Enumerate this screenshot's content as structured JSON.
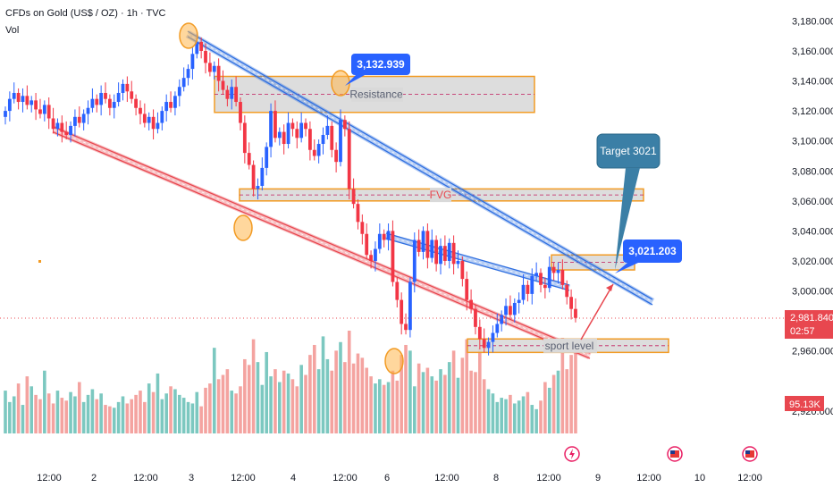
{
  "header": {
    "symbol_line": "CFDs on Gold (US$ / OZ) · 1h · TVC",
    "volume_label": "Vol"
  },
  "chart_data": {
    "type": "candlestick",
    "ylim": [
      2905,
      3185
    ],
    "y_ticks": [
      2920,
      2960,
      3000,
      3020,
      3040,
      3060,
      3080,
      3100,
      3120,
      3140,
      3160,
      3180
    ],
    "y_tick_labels": [
      "2,920.000",
      "2,960.000",
      "3,000.000",
      "3,020.000",
      "3,040.000",
      "3,060.000",
      "3,080.000",
      "3,100.000",
      "3,120.000",
      "3,140.000",
      "3,160.000",
      "3,180.000"
    ],
    "x_tick_labels": [
      "12:00",
      "2",
      "12:00",
      "3",
      "12:00",
      "4",
      "12:00",
      "6",
      "12:00",
      "8",
      "12:00",
      "9",
      "12:00",
      "10",
      "12:00"
    ],
    "closes": [
      3120,
      3128,
      3132,
      3126,
      3130,
      3124,
      3127,
      3121,
      3118,
      3124,
      3115,
      3108,
      3112,
      3106,
      3104,
      3110,
      3116,
      3112,
      3118,
      3122,
      3128,
      3124,
      3132,
      3128,
      3122,
      3126,
      3132,
      3138,
      3133,
      3128,
      3122,
      3118,
      3112,
      3116,
      3108,
      3112,
      3120,
      3126,
      3122,
      3130,
      3136,
      3142,
      3148,
      3158,
      3166,
      3160,
      3152,
      3146,
      3150,
      3140,
      3134,
      3128,
      3136,
      3126,
      3112,
      3092,
      3084,
      3068,
      3070,
      3082,
      3096,
      3120,
      3102,
      3106,
      3098,
      3112,
      3108,
      3102,
      3112,
      3108,
      3094,
      3090,
      3098,
      3104,
      3110,
      3094,
      3086,
      3114,
      3108,
      3068,
      3058,
      3046,
      3038,
      3024,
      3020,
      3028,
      3038,
      3034,
      3040,
      3006,
      2994,
      2978,
      2974,
      3006,
      3034,
      3026,
      3040,
      3022,
      3034,
      3018,
      3030,
      3020,
      3032,
      3018,
      3020,
      3008,
      2994,
      2988,
      2976,
      2968,
      2962,
      2966,
      2972,
      2978,
      2984,
      2990,
      2984,
      2992,
      2994,
      3004,
      2998,
      3010,
      3012,
      3004,
      3002,
      3016,
      3012,
      3014,
      3004,
      2996,
      2988,
      2982
    ],
    "volumes": [
      30,
      22,
      26,
      35,
      20,
      40,
      33,
      27,
      24,
      44,
      28,
      21,
      30,
      25,
      23,
      29,
      26,
      36,
      22,
      27,
      31,
      24,
      28,
      20,
      19,
      18,
      22,
      26,
      21,
      24,
      27,
      30,
      22,
      35,
      29,
      42,
      24,
      28,
      33,
      31,
      27,
      25,
      22,
      21,
      29,
      19,
      32,
      35,
      60,
      38,
      41,
      45,
      30,
      28,
      33,
      52,
      48,
      66,
      50,
      34,
      57,
      40,
      45,
      36,
      44,
      42,
      38,
      33,
      48,
      41,
      55,
      62,
      45,
      68,
      52,
      44,
      58,
      64,
      50,
      72,
      49,
      56,
      53,
      46,
      40,
      35,
      38,
      34,
      36,
      44,
      37,
      55,
      62,
      58,
      33,
      49,
      43,
      46,
      40,
      37,
      45,
      41,
      50,
      58,
      39,
      53,
      66,
      44,
      43,
      60,
      38,
      31,
      28,
      22,
      25,
      24,
      27,
      21,
      23,
      26,
      29,
      20,
      17,
      23,
      36,
      32,
      41,
      44,
      67,
      45,
      55,
      60
    ],
    "last_price_label": "2,981.840",
    "countdown_label": "02:57",
    "volume_value_label": "95.13K",
    "annotations": {
      "resistance": "Resistance",
      "fvg": "FVG",
      "support": "sport level",
      "high_label": "3,132.939",
      "target_price_label": "3,021.203",
      "target_callout": "Target 3021"
    },
    "colors": {
      "up": "#2962ff",
      "down": "#f23645",
      "vol_up": "#7cc8c0",
      "vol_down": "#f4a3a0",
      "zone_fill": "#d9d9d9",
      "zone_border": "#f29b24",
      "channel_blue": "#2f6fe0",
      "channel_red": "#e8474f",
      "callout_blue": "#2962ff",
      "callout_teal": "#3b7fa6",
      "last_price_red": "#e8474f"
    }
  }
}
